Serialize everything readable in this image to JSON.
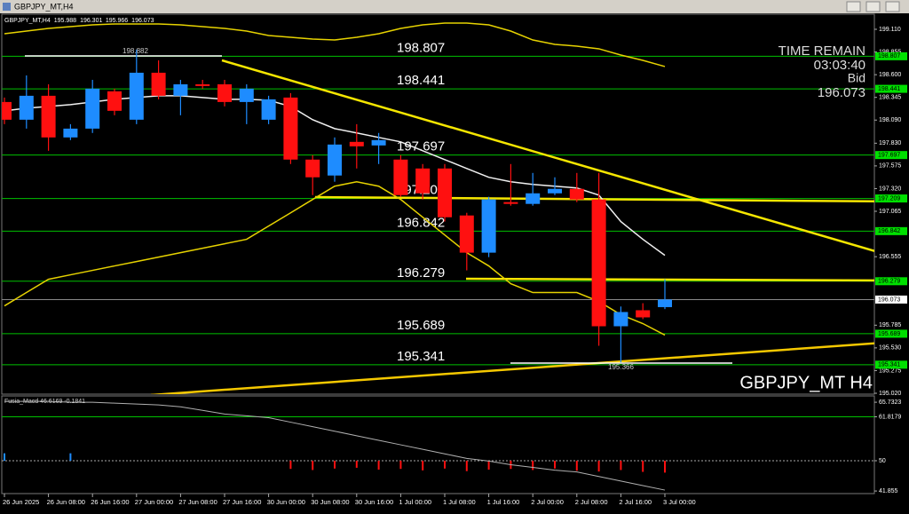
{
  "chart_data": {
    "type": "candlestick",
    "title": "GBPJPY_MT,H4",
    "watermark": "GBPJPY_MT H4",
    "time_remain_label": "TIME REMAIN",
    "time_remain": "03:03:40",
    "bid_label": "Bid",
    "categories": [
      "26 Jun 2025",
      null,
      "26 Jun 08:00",
      null,
      "26 Jun 16:00",
      null,
      "27 Jun 00:00",
      null,
      "27 Jun 08:00",
      null,
      "27 Jun 16:00",
      null,
      "30 Jun 00:00",
      null,
      "30 Jun 08:00",
      null,
      "30 Jun 16:00",
      null,
      "1 Jul 00:00",
      null,
      "1 Jul 08:00",
      null,
      "1 Jul 16:00",
      null,
      "2 Jul 00:00",
      null,
      "2 Jul 08:00",
      null,
      "2 Jul 16:00",
      null,
      "3 Jul 00:00"
    ],
    "open": [
      198.293,
      198.094,
      198.363,
      197.895,
      197.994,
      198.413,
      198.094,
      198.622,
      198.363,
      198.492,
      198.492,
      198.293,
      198.094,
      198.343,
      197.646,
      197.467,
      197.845,
      197.805,
      197.646,
      197.546,
      197.546,
      197.018,
      196.6,
      197.168,
      197.148,
      197.267,
      197.317,
      197.198,
      195.773,
      195.953,
      195.988
    ],
    "high": [
      198.343,
      198.592,
      198.492,
      198.044,
      198.542,
      198.443,
      198.882,
      198.761,
      198.542,
      198.542,
      198.542,
      198.492,
      198.363,
      198.393,
      197.696,
      197.895,
      198.044,
      197.945,
      197.696,
      197.596,
      197.596,
      197.048,
      197.228,
      197.596,
      197.496,
      197.447,
      197.496,
      197.496,
      195.995,
      196.032,
      196.301
    ],
    "low": [
      198.044,
      197.994,
      197.745,
      197.865,
      197.945,
      198.144,
      198.044,
      198.323,
      198.144,
      198.443,
      198.244,
      198.044,
      198.044,
      197.596,
      197.247,
      197.397,
      197.546,
      197.596,
      197.228,
      197.198,
      196.949,
      196.401,
      196.55,
      197.128,
      197.128,
      197.247,
      197.168,
      195.554,
      195.366,
      195.853,
      195.966
    ],
    "close": [
      198.094,
      198.363,
      197.895,
      197.994,
      198.443,
      198.194,
      198.622,
      198.363,
      198.492,
      198.473,
      198.293,
      198.443,
      198.323,
      197.646,
      197.447,
      197.815,
      197.795,
      197.865,
      197.247,
      197.267,
      196.998,
      196.6,
      197.198,
      197.148,
      197.267,
      197.317,
      197.198,
      195.773,
      195.933,
      195.873,
      196.073
    ],
    "high_label_index": 6,
    "low_label_index": 28,
    "up_color": "#1e8cff",
    "down_color": "#ff1010",
    "ylim": [
      195.0,
      199.16
    ],
    "yticks": [
      {
        "value": 199.11,
        "label": "199.110"
      },
      198.855,
      {
        "value": 198.6,
        "label": "198.600"
      },
      198.345,
      {
        "value": 198.09,
        "label": "198.090"
      },
      {
        "value": 197.83,
        "label": "197.830"
      },
      197.575,
      {
        "value": 197.32,
        "label": "197.320"
      },
      197.065,
      196.555,
      195.785,
      {
        "value": 195.53,
        "label": "195.530"
      },
      195.275,
      {
        "value": 195.02,
        "label": "195.020"
      }
    ],
    "levels": [
      198.807,
      198.441,
      197.697,
      197.209,
      196.842,
      196.279,
      195.689,
      195.341
    ],
    "level_color": "#00c000",
    "overlays": [
      {
        "color": "#f0f0f0",
        "values": [
          198.194,
          198.224,
          198.243,
          198.263,
          198.293,
          198.323,
          198.343,
          198.363,
          198.363,
          198.343,
          198.323,
          198.323,
          198.313,
          198.243,
          198.094,
          197.994,
          197.945,
          197.895,
          197.845,
          197.745,
          197.646,
          197.546,
          197.447,
          197.397,
          197.367,
          197.347,
          197.327,
          197.247,
          196.949,
          196.75,
          196.57
        ]
      },
      {
        "color": "#e6d200",
        "values": [
          199.06,
          199.09,
          199.12,
          199.14,
          199.16,
          199.17,
          199.17,
          199.17,
          199.16,
          199.14,
          199.12,
          199.09,
          199.04,
          199.02,
          199.0,
          198.99,
          199.02,
          199.06,
          199.12,
          199.16,
          199.18,
          199.18,
          199.16,
          199.09,
          198.99,
          198.941,
          198.921,
          198.891,
          198.821,
          198.761,
          198.692
        ]
      },
      {
        "color": "#e6d200",
        "values": [
          196.002,
          196.152,
          196.301,
          196.351,
          196.401,
          196.451,
          196.5,
          196.55,
          196.6,
          196.65,
          196.7,
          196.75,
          196.899,
          197.048,
          197.198,
          197.347,
          197.397,
          197.347,
          197.198,
          196.998,
          196.799,
          196.6,
          196.451,
          196.251,
          196.152,
          196.152,
          196.152,
          196.052,
          195.903,
          195.803,
          195.674
        ]
      }
    ],
    "indicator": {
      "label": "Fusia_Macd 46.6169 -0.1841",
      "ylim": [
        41.16,
        67.19
      ],
      "yticks": [
        65.7323,
        61.8179,
        50,
        41.855
      ],
      "level": 61.8179,
      "base": 50,
      "line_color": "#b0b0b0",
      "histogram": [
        52,
        null,
        null,
        52,
        null,
        null,
        null,
        null,
        null,
        null,
        null,
        null,
        null,
        47.8,
        47.5,
        47.9,
        48.1,
        47.6,
        47.8,
        47.4,
        47.9,
        47.2,
        47.6,
        47.8,
        47.5,
        47.9,
        47.3,
        47.1,
        47.5,
        47.0,
        46.8
      ],
      "line": [
        65.98,
        65.98,
        65.98,
        65.73,
        65.73,
        65.49,
        65.25,
        65.0,
        64.5,
        63.54,
        62.56,
        62.08,
        61.59,
        60.37,
        59.15,
        57.94,
        56.72,
        55.5,
        54.28,
        53.07,
        51.85,
        50.63,
        49.9,
        48.93,
        48.2,
        47.46,
        46.97,
        45.75,
        44.53,
        43.32,
        42.1
      ]
    }
  }
}
